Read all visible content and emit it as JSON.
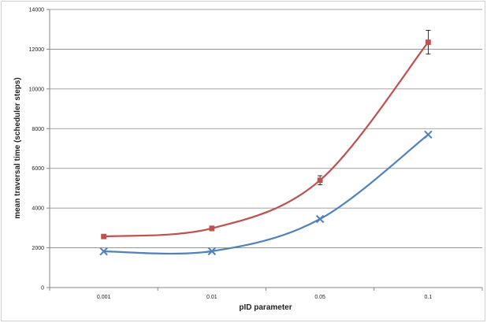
{
  "chart_data": {
    "type": "line",
    "title": "",
    "xlabel": "pID parameter",
    "ylabel": "mean traversal time (scheduler steps)",
    "categories": [
      "0.001",
      "0.01",
      "0.05",
      "0.1"
    ],
    "ylim": [
      0,
      14000
    ],
    "yticks": [
      "0",
      "2000",
      "4000",
      "6000",
      "8000",
      "10000",
      "12000",
      "14000"
    ],
    "grid": "horizontal",
    "smooth": true,
    "series": [
      {
        "color": "#C0504D",
        "marker": "square",
        "values": [
          2570,
          2980,
          5400,
          12350
        ],
        "error": [
          80,
          120,
          230,
          600
        ]
      },
      {
        "color": "#4F81BD",
        "marker": "x",
        "values": [
          1820,
          1830,
          3450,
          7700
        ]
      }
    ]
  }
}
